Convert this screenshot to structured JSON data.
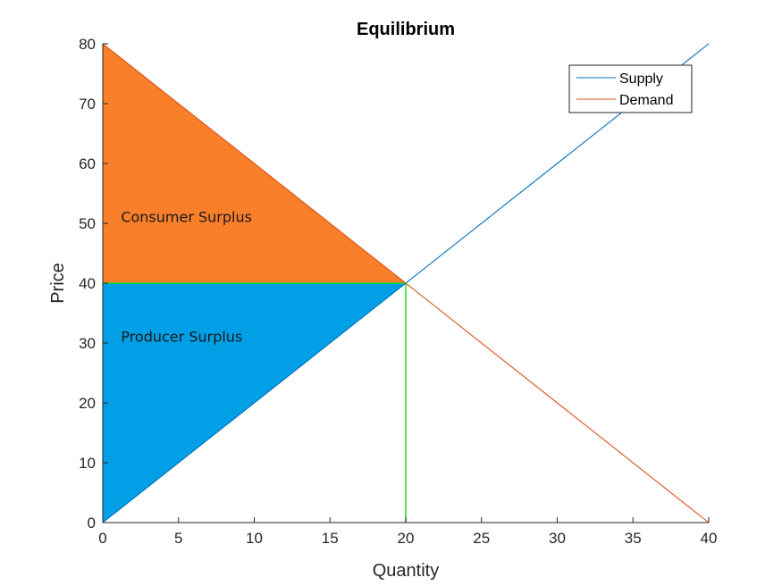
{
  "chart_data": {
    "type": "line",
    "title": "Equilibrium",
    "xlabel": "Quantity",
    "ylabel": "Price",
    "xlim": [
      0,
      40
    ],
    "ylim": [
      0,
      80
    ],
    "x_ticks": [
      0,
      5,
      10,
      15,
      20,
      25,
      30,
      35,
      40
    ],
    "y_ticks": [
      0,
      10,
      20,
      30,
      40,
      50,
      60,
      70,
      80
    ],
    "grid": false,
    "legend_position": "top-right",
    "series": [
      {
        "name": "Supply",
        "color": "#0072BD",
        "x": [
          0,
          40
        ],
        "y": [
          0,
          80
        ]
      },
      {
        "name": "Demand",
        "color": "#D95319",
        "x": [
          0,
          40
        ],
        "y": [
          80,
          0
        ]
      }
    ],
    "equilibrium": {
      "quantity": 20,
      "price": 40,
      "color": "#1FD81F"
    },
    "regions": [
      {
        "label": "Consumer Surplus",
        "color": "#F97F2A",
        "points": [
          [
            0,
            80
          ],
          [
            20,
            40
          ],
          [
            0,
            40
          ]
        ],
        "label_at": [
          1.2,
          51
        ]
      },
      {
        "label": "Producer Surplus",
        "color": "#009FE6",
        "points": [
          [
            0,
            0
          ],
          [
            20,
            40
          ],
          [
            0,
            40
          ]
        ],
        "label_at": [
          1.2,
          31
        ]
      }
    ]
  }
}
